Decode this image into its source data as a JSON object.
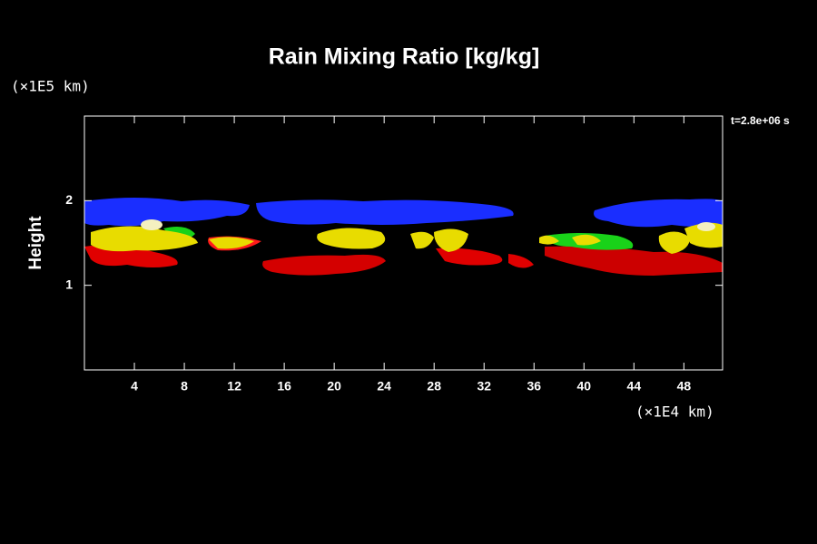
{
  "chart_data": {
    "type": "shaded-field",
    "title": "Rain Mixing Ratio [kg/kg]",
    "y_unit": "(×1E5 km)",
    "x_unit": "(×1E4 km)",
    "ylabel": "Height",
    "time_label": "t=2.8e+06 s",
    "xlim": [
      0,
      51.1
    ],
    "ylim": [
      0,
      3
    ],
    "xticks": [
      4,
      8,
      12,
      16,
      20,
      24,
      28,
      32,
      36,
      40,
      44,
      48
    ],
    "yticks": [
      1,
      2
    ]
  }
}
